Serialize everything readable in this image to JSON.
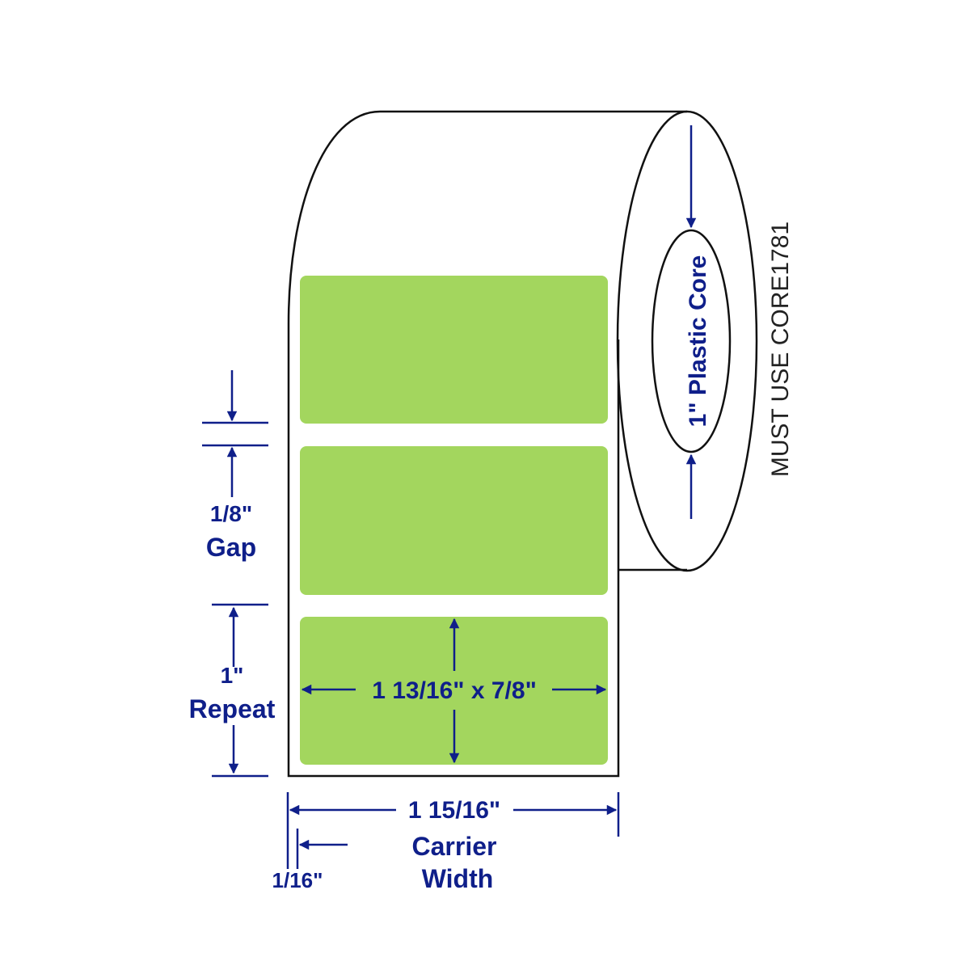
{
  "colors": {
    "label": "#a3d65e",
    "dimension": "#0f1f8a",
    "outline": "#111111"
  },
  "core": {
    "label": "1\" Plastic Core",
    "note": "MUST USE CORE1781"
  },
  "gap": {
    "value": "1/8\"",
    "label": "Gap"
  },
  "repeat": {
    "value": "1\"",
    "label": "Repeat"
  },
  "label_size": "1 13/16\" x 7/8\"",
  "carrier": {
    "value": "1 15/16\"",
    "label1": "Carrier",
    "label2": "Width"
  },
  "margin": "1/16\""
}
